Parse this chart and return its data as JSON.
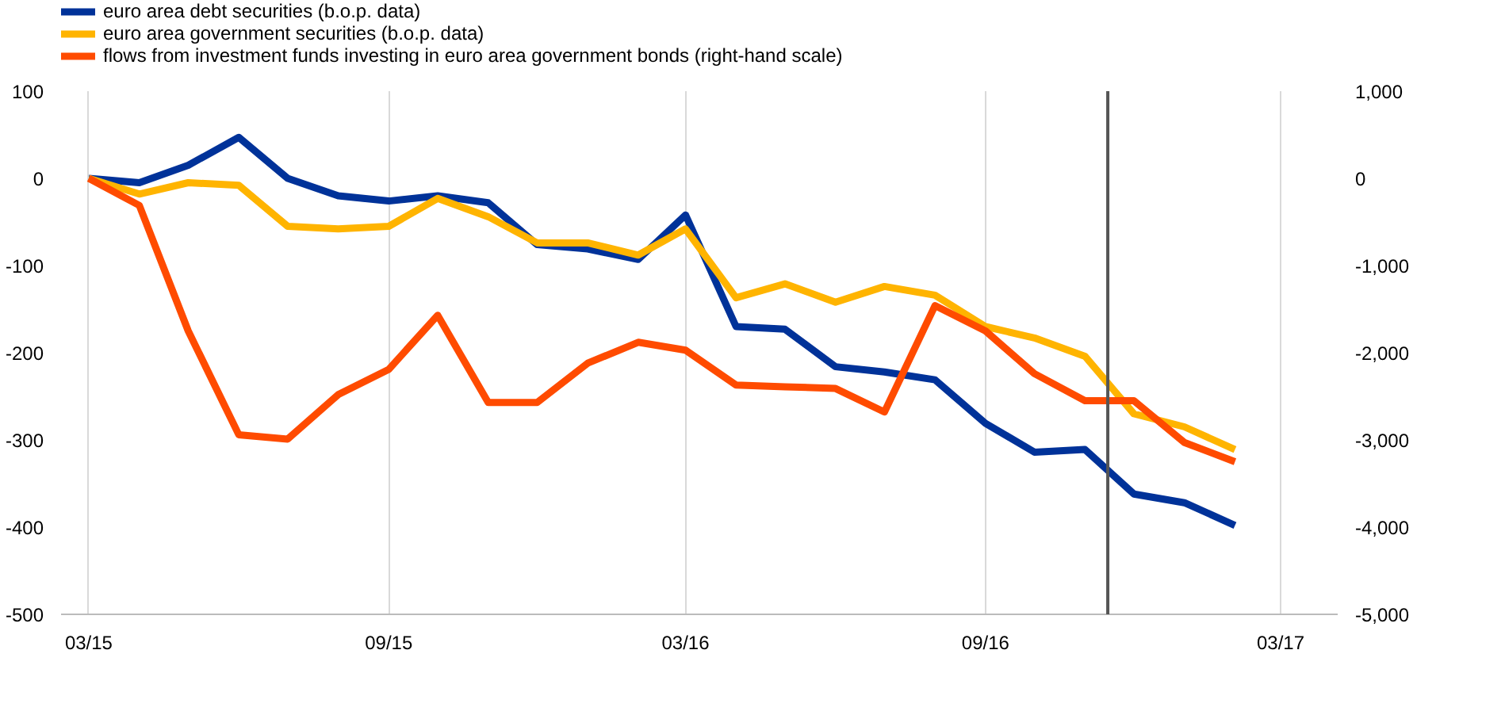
{
  "chart_data": {
    "type": "line",
    "x": [
      "2015-03",
      "2015-04",
      "2015-05",
      "2015-06",
      "2015-07",
      "2015-08",
      "2015-09",
      "2015-10",
      "2015-11",
      "2015-12",
      "2016-01",
      "2016-02",
      "2016-03",
      "2016-04",
      "2016-05",
      "2016-06",
      "2016-07",
      "2016-08",
      "2016-09",
      "2016-10",
      "2016-11",
      "2016-12",
      "2017-01",
      "2017-02"
    ],
    "series": [
      {
        "name": "euro area debt securities (b.o.p. data)",
        "color": "#003299",
        "values": [
          0,
          -5,
          15,
          47,
          0,
          -20,
          -26,
          -20,
          -28,
          -76,
          -81,
          -93,
          -42,
          -170,
          -173,
          -216,
          -222,
          -231,
          -281,
          -314,
          -311,
          -362,
          -372,
          -398
        ]
      },
      {
        "name": "euro area government securities (b.o.p. data)",
        "color": "#ffb400",
        "values": [
          0,
          -18,
          -5,
          -8,
          -55,
          -58,
          -55,
          -23,
          -44,
          -74,
          -74,
          -88,
          -58,
          -137,
          -121,
          -142,
          -124,
          -134,
          -170,
          -183,
          -204,
          -270,
          -285,
          -311
        ]
      },
      {
        "name": "flows from investment funds investing in euro area government bonds (right-hand scale)",
        "color": "#ff4b00",
        "axis": "y2",
        "values": [
          0,
          -310,
          -1750,
          -2940,
          -2990,
          -2480,
          -2190,
          -1570,
          -2570,
          -2570,
          -2120,
          -1880,
          -1970,
          -2370,
          -2390,
          -2410,
          -2680,
          -1460,
          -1750,
          -2240,
          -2550,
          -2550,
          -3030,
          -3250
        ]
      }
    ],
    "xlim": [
      "2015-02-12",
      "2017-04-05"
    ],
    "xticks": [
      {
        "value": "2015-03",
        "label": "03/15"
      },
      {
        "value": "2015-09",
        "label": "09/15"
      },
      {
        "value": "2016-03",
        "label": "03/16"
      },
      {
        "value": "2016-09",
        "label": "09/16"
      },
      {
        "value": "2017-03",
        "label": "03/17"
      }
    ],
    "ylim": [
      -500,
      100
    ],
    "yticks": [
      -500,
      -400,
      -300,
      -200,
      -100,
      0,
      100
    ],
    "y2lim": [
      -5000,
      1000
    ],
    "y2ticks": [
      {
        "value": -5000,
        "label": "-5,000"
      },
      {
        "value": -4000,
        "label": "-4,000"
      },
      {
        "value": -3000,
        "label": "-3,000"
      },
      {
        "value": -2000,
        "label": "-2,000"
      },
      {
        "value": -1000,
        "label": "-1,000"
      },
      0,
      {
        "value": 1000,
        "label": "1,000"
      }
    ],
    "ref_lines": [
      {
        "axis": "x",
        "value": "2016-11-15",
        "color": "#555555"
      }
    ],
    "grid": "x",
    "legend": "top left",
    "line_style": "solid"
  }
}
